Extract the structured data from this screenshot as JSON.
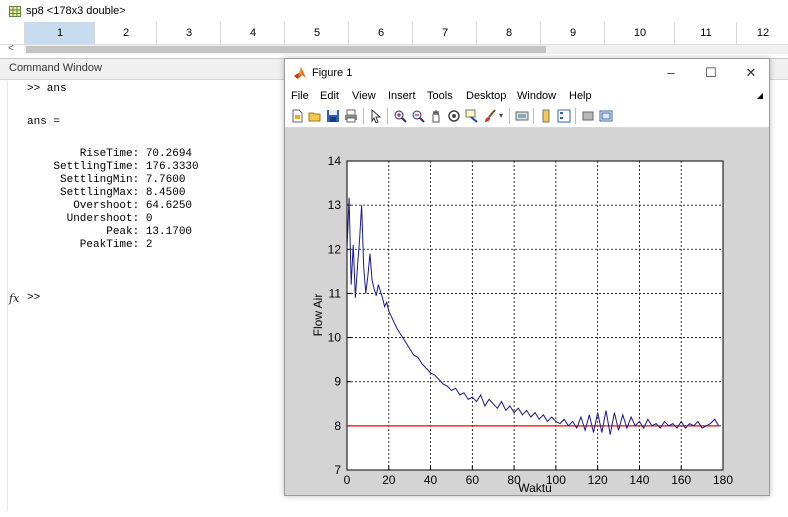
{
  "variable_editor": {
    "title": "sp8 <178x3 double>",
    "columns": [
      "1",
      "2",
      "3",
      "4",
      "5",
      "6",
      "7",
      "8",
      "9",
      "10",
      "11",
      "12"
    ],
    "scroll_left": "<"
  },
  "command_window": {
    "title": "Command Window",
    "lines": [
      ">> ans",
      "ans =",
      "        RiseTime: 70.2694",
      "    SettlingTime: 176.3330",
      "     SettlingMin: 7.7600",
      "     SettlingMax: 8.4500",
      "       Overshoot: 64.6250",
      "      Undershoot: 0",
      "            Peak: 13.1700",
      "        PeakTime: 2"
    ],
    "prompt": ">>",
    "fx": "fx"
  },
  "figure": {
    "title": "Figure 1",
    "window_buttons": [
      "–",
      "☐",
      "✕"
    ],
    "menu": [
      "File",
      "Edit",
      "View",
      "Insert",
      "Tools",
      "Desktop",
      "Window",
      "Help"
    ],
    "toolbar_icons": [
      "new-figure-icon",
      "open-file-icon",
      "save-icon",
      "print-icon",
      "pointer-icon",
      "zoom-in-icon",
      "zoom-out-icon",
      "pan-icon",
      "rotate-icon",
      "data-cursor-icon",
      "brush-icon",
      "link-icon",
      "colorbar-icon",
      "legend-icon",
      "hide-plot-tools-icon",
      "show-plot-tools-icon"
    ]
  },
  "chart_data": {
    "type": "line",
    "xlabel": "Waktu",
    "ylabel": "Flow Air",
    "xlim": [
      0,
      180
    ],
    "ylim": [
      7,
      14
    ],
    "xticks": [
      0,
      20,
      40,
      60,
      80,
      100,
      120,
      140,
      160,
      180
    ],
    "yticks": [
      7,
      8,
      9,
      10,
      11,
      12,
      13,
      14
    ],
    "grid": true,
    "colors": {
      "response": "#1a1a8c",
      "setpoint": "#ff0000"
    },
    "series": [
      {
        "x": [
          0,
          1,
          2,
          3,
          4,
          5,
          6,
          7,
          8,
          9,
          10,
          11,
          12,
          13,
          14,
          15,
          16,
          17,
          18,
          19,
          20,
          22,
          24,
          26,
          28,
          30,
          32,
          34,
          36,
          38,
          40,
          42,
          44,
          46,
          48,
          50,
          52,
          54,
          56,
          58,
          60,
          62,
          64,
          66,
          68,
          70,
          72,
          74,
          76,
          78,
          80,
          82,
          84,
          86,
          88,
          90,
          92,
          94,
          96,
          98,
          100,
          102,
          104,
          106,
          108,
          110,
          112,
          114,
          116,
          118,
          120,
          122,
          124,
          126,
          128,
          130,
          132,
          134,
          136,
          138,
          140,
          142,
          144,
          146,
          148,
          150,
          152,
          154,
          156,
          158,
          160,
          162,
          164,
          166,
          168,
          170,
          172,
          174,
          176,
          178
        ],
        "values": [
          12.0,
          13.17,
          11.2,
          12.1,
          10.9,
          11.6,
          12.2,
          13.0,
          11.6,
          11.0,
          11.4,
          11.9,
          11.3,
          11.1,
          10.95,
          11.2,
          11.05,
          10.9,
          10.7,
          10.8,
          10.6,
          10.4,
          10.2,
          10.05,
          9.9,
          9.75,
          9.6,
          9.55,
          9.4,
          9.3,
          9.2,
          9.15,
          9.05,
          8.95,
          8.9,
          8.8,
          8.85,
          8.7,
          8.75,
          8.6,
          8.65,
          8.55,
          8.7,
          8.45,
          8.6,
          8.5,
          8.4,
          8.55,
          8.35,
          8.45,
          8.3,
          8.4,
          8.25,
          8.35,
          8.2,
          8.3,
          8.15,
          8.25,
          8.1,
          8.2,
          8.1,
          8.05,
          8.15,
          8.0,
          8.1,
          7.95,
          8.2,
          7.9,
          8.25,
          7.85,
          8.3,
          7.85,
          8.35,
          7.8,
          8.3,
          7.9,
          8.25,
          7.95,
          8.2,
          8.0,
          8.1,
          7.95,
          8.15,
          8.0,
          8.05,
          7.95,
          8.1,
          8.0,
          8.05,
          7.95,
          8.1,
          7.95,
          8.05,
          8.0,
          8.1,
          7.95,
          8.0,
          8.05,
          8.15,
          8.0
        ]
      },
      {
        "x": [
          0,
          178
        ],
        "values": [
          8,
          8
        ]
      }
    ]
  }
}
